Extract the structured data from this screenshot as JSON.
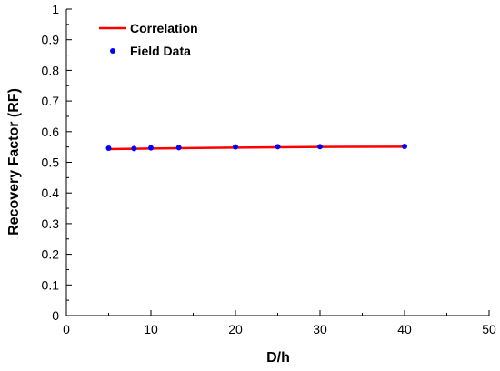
{
  "chart_data": {
    "type": "scatter",
    "title": "",
    "xlabel": "D/h",
    "ylabel": "Recovery Factor (RF)",
    "xlim": [
      0,
      50
    ],
    "ylim": [
      0,
      1
    ],
    "x_ticks": [
      "0",
      "10",
      "20",
      "30",
      "40",
      "50"
    ],
    "y_ticks": [
      "0",
      "0.1",
      "0.2",
      "0.3",
      "0.4",
      "0.5",
      "0.6",
      "0.7",
      "0.8",
      "0.9",
      "1"
    ],
    "grid": false,
    "legend_position": "top-left",
    "series": [
      {
        "name": "Correlation",
        "kind": "line",
        "color": "#ff0000",
        "x": [
          5,
          8,
          10,
          13.3,
          20,
          25,
          30,
          40
        ],
        "y": [
          0.543,
          0.544,
          0.545,
          0.546,
          0.548,
          0.549,
          0.55,
          0.551
        ]
      },
      {
        "name": "Field Data",
        "kind": "marker",
        "color": "#0000ff",
        "x": [
          5,
          8,
          10,
          13.3,
          20,
          25,
          30,
          40
        ],
        "y": [
          0.546,
          0.545,
          0.547,
          0.548,
          0.55,
          0.551,
          0.551,
          0.552
        ]
      }
    ]
  }
}
